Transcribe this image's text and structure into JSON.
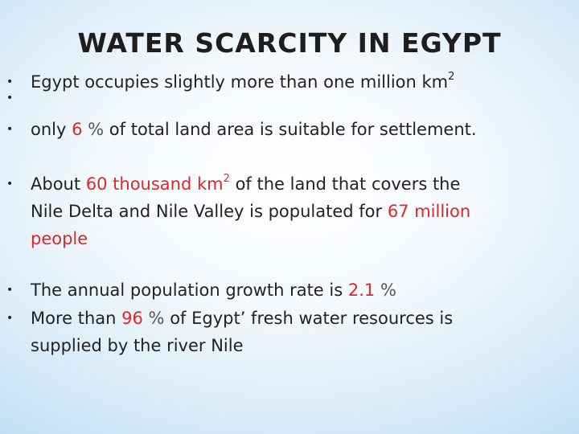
{
  "slide": {
    "title": "WATER SCARCITY IN EGYPT",
    "b1": {
      "text": "Egypt occupies slightly more than one million km",
      "sup": "2"
    },
    "b2": {
      "t1": "only ",
      "r1": "6",
      "pct": " % ",
      "t2": "of total land area is suitable for settlement."
    },
    "b3": {
      "t1": "About ",
      "r1": "60 thousand km",
      "rsup": "2",
      "t2": " of the land that covers the",
      "l2a": "Nile Delta and Nile Valley is populated for ",
      "r2": "67 million",
      "r3": "people"
    },
    "b4": {
      "t1": "The annual population growth rate is ",
      "r1": "2.1",
      "pct": " %"
    },
    "b5": {
      "t1": "More than ",
      "r1": "96",
      "pct": " % ",
      "t2": "of Egypt’ fresh water resources is",
      "l2": "supplied by the river Nile"
    },
    "bullet_char": "•"
  }
}
